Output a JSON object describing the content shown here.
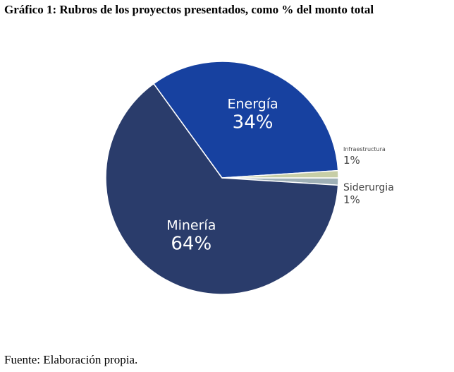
{
  "title": "Gráfico 1: Rubros de los proyectos presentados, como % del monto total",
  "source": "Fuente: Elaboración propia.",
  "chart_data": {
    "type": "pie",
    "title": "Gráfico 1: Rubros de los proyectos presentados, como % del monto total",
    "slices": [
      {
        "name": "Siderurgia",
        "value": 1,
        "label": "1%",
        "color": "#9fb0b6"
      },
      {
        "name": "Minería",
        "value": 64,
        "label": "64%",
        "color": "#2a3c6b"
      },
      {
        "name": "Energía",
        "value": 34,
        "label": "34%",
        "color": "#1741a0"
      },
      {
        "name": "Infraestructura",
        "value": 1,
        "label": "1%",
        "color": "#c7cea6"
      }
    ],
    "start": "3 o'clock",
    "direction": "clockwise"
  }
}
